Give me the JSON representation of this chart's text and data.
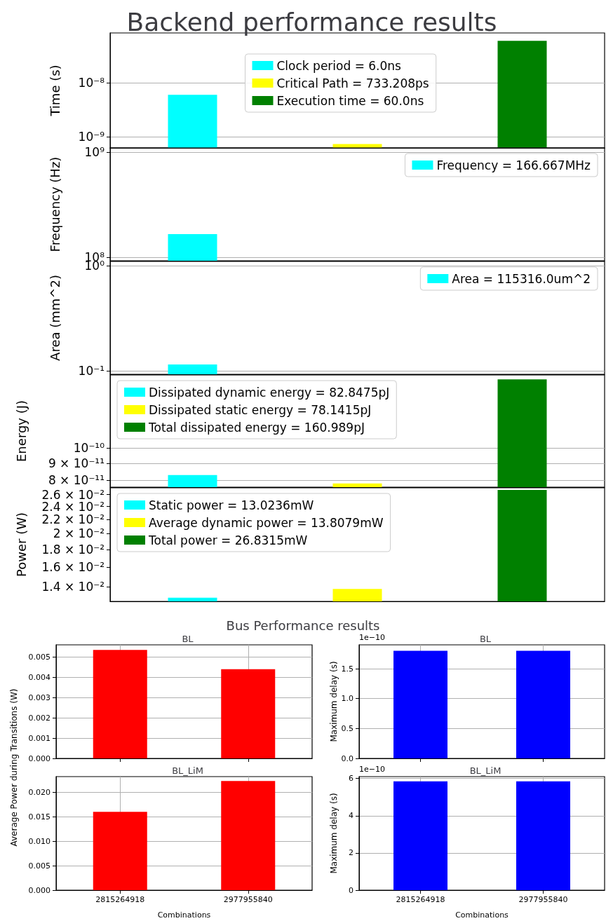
{
  "chart_data": [
    {
      "type": "bar",
      "title": "Backend performance results",
      "ylabel": "Time (s)",
      "categories": [
        null,
        null,
        null
      ],
      "log": true,
      "ylim": [
        6.2e-10,
        8.4e-08
      ],
      "yticks": [
        {
          "value": 1e-09,
          "label": "10⁻⁹"
        },
        {
          "value": 1e-08,
          "label": "10⁻⁸"
        }
      ],
      "grid": "y",
      "legend": "center",
      "tick_labels": "y",
      "series": [
        {
          "name": "Clock period = 6.0ns",
          "color": "#00ffff",
          "values": [
            6e-09,
            null,
            null
          ]
        },
        {
          "name": "Critical Path = 733.208ps",
          "color": "#ffff00",
          "values": [
            null,
            7.33208e-10,
            null
          ]
        },
        {
          "name": "Execution time = 60.0ns",
          "color": "#008000",
          "values": [
            null,
            null,
            6e-08
          ]
        }
      ]
    },
    {
      "type": "bar",
      "ylabel": "Frequency (Hz)",
      "categories": [
        null,
        null,
        null
      ],
      "log": true,
      "ylim": [
        93000000.0,
        1100000000.0
      ],
      "yticks": [
        {
          "value": 100000000.0,
          "label": "10⁸"
        },
        {
          "value": 1000000000.0,
          "label": "10⁹"
        }
      ],
      "grid": "y",
      "legend": "top right",
      "tick_labels": "y",
      "series": [
        {
          "name": "Frequency = 166.667MHz",
          "color": "#00ffff",
          "values": [
            166667000.0,
            null,
            null
          ]
        }
      ]
    },
    {
      "type": "bar",
      "ylabel": "Area (mm^2)",
      "categories": [
        null,
        null,
        null
      ],
      "log": true,
      "ylim": [
        0.093,
        1.1
      ],
      "yticks": [
        {
          "value": 0.1,
          "label": "10⁻¹"
        },
        {
          "value": 1,
          "label": "10⁰"
        }
      ],
      "grid": "y",
      "legend": "top right",
      "tick_labels": "y",
      "series": [
        {
          "name": "Area = 115316.0um^2",
          "color": "#00ffff",
          "values": [
            0.115316,
            null,
            null
          ]
        }
      ]
    },
    {
      "type": "bar",
      "ylabel": "Energy (J)",
      "categories": [
        null,
        null,
        null
      ],
      "log": true,
      "ylim": [
        7.62e-11,
        1.66e-10
      ],
      "yticks": [
        {
          "value": 8e-11,
          "label": "8 × 10⁻¹¹"
        },
        {
          "value": 9e-11,
          "label": "9 × 10⁻¹¹"
        },
        {
          "value": 1e-10,
          "label": "10⁻¹⁰"
        }
      ],
      "grid": "y",
      "legend": "top left",
      "tick_labels": "y",
      "series": [
        {
          "name": "Dissipated dynamic energy = 82.8475pJ",
          "color": "#00ffff",
          "values": [
            8.28475e-11,
            null,
            null
          ]
        },
        {
          "name": "Dissipated static energy = 78.1415pJ",
          "color": "#ffff00",
          "values": [
            null,
            7.81415e-11,
            null
          ]
        },
        {
          "name": "Total dissipated energy = 160.989pJ",
          "color": "#008000",
          "values": [
            null,
            null,
            1.60989e-10
          ]
        }
      ]
    },
    {
      "type": "bar",
      "ylabel": "Power (W)",
      "categories": [
        null,
        null,
        null
      ],
      "log": true,
      "ylim": [
        0.0127,
        0.0272
      ],
      "yticks": [
        {
          "value": 0.014,
          "label": "1.4 × 10⁻²"
        },
        {
          "value": 0.016,
          "label": "1.6 × 10⁻²"
        },
        {
          "value": 0.018,
          "label": "1.8 × 10⁻²"
        },
        {
          "value": 0.02,
          "label": "2 × 10⁻²"
        },
        {
          "value": 0.022,
          "label": "2.2 × 10⁻²"
        },
        {
          "value": 0.024,
          "label": "2.4 × 10⁻²"
        },
        {
          "value": 0.026,
          "label": "2.6 × 10⁻²"
        }
      ],
      "legend": "top left",
      "tick_labels": "y",
      "series": [
        {
          "name": "Static power = 13.0236mW",
          "color": "#00ffff",
          "values": [
            0.0130236,
            null,
            null
          ]
        },
        {
          "name": "Average dynamic power = 13.8079mW",
          "color": "#ffff00",
          "values": [
            null,
            0.0138079,
            null
          ]
        },
        {
          "name": "Total power = 26.8315mW",
          "color": "#008000",
          "values": [
            null,
            null,
            0.0268315
          ]
        }
      ]
    },
    {
      "type": "bar",
      "title": "Bus Performance results",
      "subtitle": "BL",
      "ylabel": "Average Power during Transitions (W)",
      "categories": [
        "2815264918",
        "2977955840"
      ],
      "values": [
        0.00535,
        0.0044
      ],
      "color": "#ff0000",
      "ylim": [
        0,
        0.0056
      ],
      "yticks": [
        {
          "value": 0,
          "label": "0.000"
        },
        {
          "value": 0.001,
          "label": "0.001"
        },
        {
          "value": 0.002,
          "label": "0.002"
        },
        {
          "value": 0.003,
          "label": "0.003"
        },
        {
          "value": 0.004,
          "label": "0.004"
        },
        {
          "value": 0.005,
          "label": "0.005"
        }
      ],
      "grid": true,
      "tick_labels": "y"
    },
    {
      "type": "bar",
      "title": "BL",
      "ylabel": "Maximum delay (s)",
      "annotations": [
        "1e−10"
      ],
      "categories": [
        "2815264918",
        "2977955840"
      ],
      "values": [
        1.8,
        1.8
      ],
      "color": "#0000ff",
      "ylim": [
        0,
        1.9
      ],
      "yticks": [
        {
          "value": 0,
          "label": "0.0"
        },
        {
          "value": 0.5,
          "label": "0.5"
        },
        {
          "value": 1,
          "label": "1.0"
        },
        {
          "value": 1.5,
          "label": "1.5"
        }
      ],
      "grid": true,
      "tick_labels": "y"
    },
    {
      "type": "bar",
      "title": "BL_LiM",
      "xlabel": "Combinations",
      "categories": [
        "2815264918",
        "2977955840"
      ],
      "values": [
        0.016,
        0.0223
      ],
      "color": "#ff0000",
      "ylim": [
        0,
        0.0232
      ],
      "yticks": [
        {
          "value": 0,
          "label": "0.000"
        },
        {
          "value": 0.005,
          "label": "0.005"
        },
        {
          "value": 0.01,
          "label": "0.010"
        },
        {
          "value": 0.015,
          "label": "0.015"
        },
        {
          "value": 0.02,
          "label": "0.020"
        }
      ],
      "grid": true
    },
    {
      "type": "bar",
      "title": "BL_LiM",
      "xlabel": "Combinations",
      "ylabel": "Maximum delay (s)",
      "annotations": [
        "1e−10"
      ],
      "categories": [
        "2815264918",
        "2977955840"
      ],
      "values": [
        5.85,
        5.85
      ],
      "color": "#0000ff",
      "ylim": [
        0,
        6.1
      ],
      "yticks": [
        0,
        2,
        4,
        6
      ],
      "grid": true
    }
  ]
}
